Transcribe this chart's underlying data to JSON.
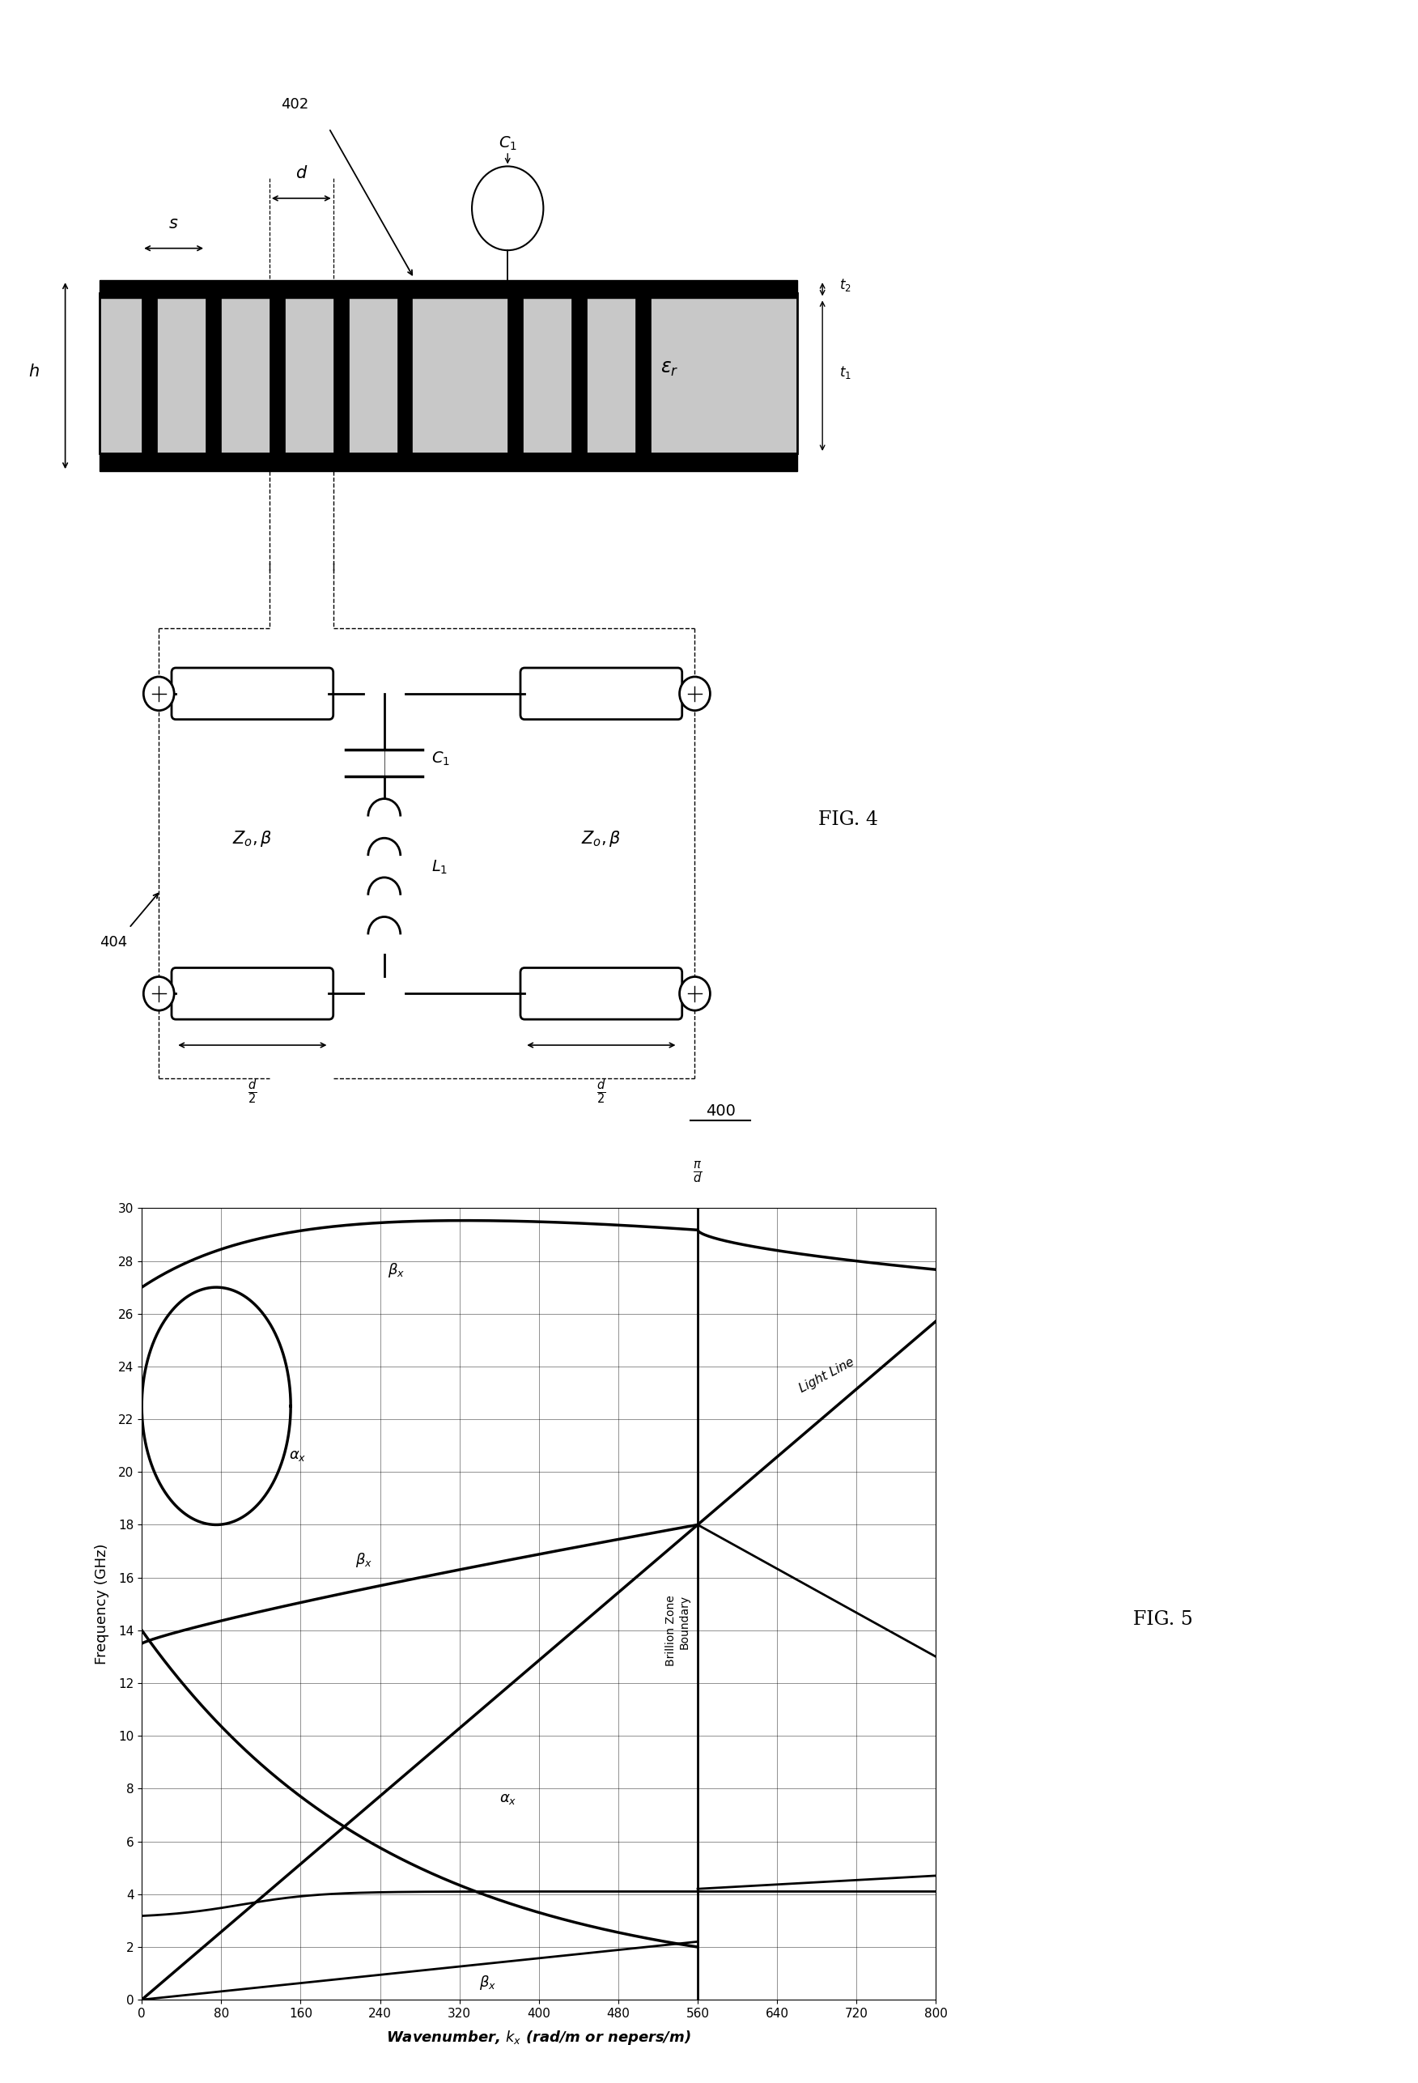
{
  "fig_width": 17.52,
  "fig_height": 25.73,
  "background_color": "#ffffff",
  "graph_xlim": [
    0,
    800
  ],
  "graph_ylim": [
    0,
    30
  ],
  "graph_xticks": [
    0,
    80,
    160,
    240,
    320,
    400,
    480,
    560,
    640,
    720,
    800
  ],
  "graph_yticks": [
    0,
    2,
    4,
    6,
    8,
    10,
    12,
    14,
    16,
    18,
    20,
    22,
    24,
    26,
    28,
    30
  ],
  "graph_xlabel": "Wavenumber, $k_x$ (rad/m or nepers/m)",
  "graph_ylabel": "Frequency (GHz)",
  "brillouin_boundary": 560,
  "fig5_label": "FIG. 5",
  "fig4_label": "FIG. 4"
}
